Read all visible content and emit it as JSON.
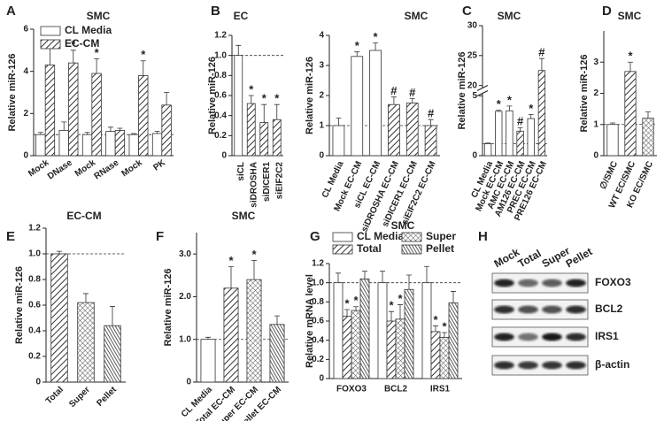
{
  "chart_data": [
    {
      "type": "bar",
      "panel": "A",
      "title": "SMC",
      "ylabel": "Relative miR-126",
      "categories": [
        "Mock",
        "DNase",
        "Mock",
        "RNase",
        "Mock",
        "PK"
      ],
      "series": [
        {
          "name": "CL Media",
          "color": "#ffffff",
          "pattern": "none",
          "values": [
            1.0,
            1.2,
            1.0,
            1.15,
            1.0,
            1.05
          ],
          "errors": [
            0.1,
            0.4,
            0.1,
            0.2,
            0.05,
            0.1
          ]
        },
        {
          "name": "EC-CM",
          "color": "#ffffff",
          "pattern": "hatch",
          "values": [
            4.3,
            4.4,
            3.9,
            1.2,
            3.8,
            2.4
          ],
          "errors": [
            1.1,
            0.6,
            0.7,
            0.1,
            0.7,
            0.6
          ],
          "labels": [
            "*",
            "*",
            "*",
            null,
            "*",
            null
          ]
        }
      ],
      "ylim": [
        0,
        6
      ],
      "yticks": [
        0,
        2,
        4,
        6
      ],
      "reference_line": 1,
      "legend": "top-left"
    },
    {
      "type": "bar",
      "panel": "B",
      "title": "EC",
      "ylabel": "Relative miR-126",
      "categories": [
        "siCL",
        "siDROSHA",
        "siDICER1",
        "siEIF2C2"
      ],
      "values": [
        1.0,
        0.52,
        0.33,
        0.36
      ],
      "errors": [
        0.1,
        0.08,
        0.18,
        0.15
      ],
      "labels": [
        null,
        "*",
        "*",
        "*"
      ],
      "color": "#ffffff",
      "patterns": [
        "none",
        "hatch",
        "hatch",
        "hatch"
      ],
      "ylim": [
        0,
        1.2
      ],
      "yticks": [
        0,
        0.2,
        0.4,
        0.6,
        0.8,
        {
          "value": 1,
          "label": "1.0"
        },
        1.2
      ],
      "reference_line": 1
    },
    {
      "type": "bar",
      "title": "SMC",
      "ylabel": "Relative miR-126",
      "categories": [
        "CL Media",
        "Mock EC-CM",
        "siCL EC-CM",
        "siDROSHA EC-CM",
        "siDICER1 EC-CM",
        "siEIF2C2 EC-CM"
      ],
      "values": [
        1.0,
        3.3,
        3.5,
        1.7,
        1.75,
        1.0
      ],
      "errors": [
        0.25,
        0.15,
        0.25,
        0.25,
        0.15,
        0.2
      ],
      "labels": [
        null,
        "*",
        "*",
        "#",
        "#",
        "#"
      ],
      "color": "#ffffff",
      "patterns": [
        "none",
        "none",
        "none",
        "hatch",
        "hatch",
        "hatch"
      ],
      "ylim": [
        0,
        4
      ],
      "yticks": [
        0,
        1,
        2,
        3,
        4
      ],
      "reference_line": 1
    },
    {
      "type": "bar",
      "panel": "C",
      "title": "SMC",
      "ylabel": "Relative miR-126",
      "categories": [
        "CL Media",
        "Mock EC-CM",
        "AMC EC-CM",
        "AM126 EC-CM",
        "PREC EC-CM",
        "PRE126 EC-CM"
      ],
      "values": [
        1.0,
        3.7,
        3.75,
        2.05,
        3.1,
        22.5
      ],
      "errors": [
        0.05,
        0.1,
        0.4,
        0.3,
        0.35,
        2
      ],
      "labels": [
        null,
        "*",
        "*",
        "#",
        "*",
        "#"
      ],
      "color": "#ffffff",
      "patterns": [
        "none",
        "none",
        "none",
        "hatch",
        "none",
        "hatch"
      ],
      "ylim": [
        0,
        30
      ],
      "ybreak": [
        5,
        20
      ],
      "yticks": [
        0,
        5,
        20,
        25,
        30
      ],
      "reference_line": 1
    },
    {
      "type": "bar",
      "panel": "D",
      "title": "SMC",
      "ylabel": "Relative miR-126",
      "categories": [
        "∅/SMC",
        "WT EC/SMC",
        "KO EC/SMC"
      ],
      "values": [
        1.0,
        2.7,
        1.2
      ],
      "errors": [
        0.05,
        0.3,
        0.2
      ],
      "labels": [
        null,
        "*",
        null
      ],
      "color": "#ffffff",
      "patterns": [
        "none",
        "hatch",
        "cross"
      ],
      "ylim": [
        0,
        4
      ],
      "yticks": [
        0,
        1,
        2,
        3
      ],
      "reference_line": 1
    },
    {
      "type": "bar",
      "panel": "E",
      "title": "EC-CM",
      "ylabel": "Relative miR-126",
      "categories": [
        "Total",
        "Super",
        "Pellet"
      ],
      "values": [
        1.0,
        0.62,
        0.44
      ],
      "errors": [
        0.02,
        0.07,
        0.15
      ],
      "color": "#ffffff",
      "patterns": [
        "hatch",
        "cross",
        "stripes"
      ],
      "ylim": [
        0,
        1.2
      ],
      "yticks": [
        0,
        0.2,
        0.4,
        0.6,
        0.8,
        {
          "value": 1,
          "label": "1.0"
        },
        1.2
      ],
      "reference_line": 1
    },
    {
      "type": "bar",
      "panel": "F",
      "title": "SMC",
      "ylabel": "Relative miR-126",
      "categories": [
        "CL Media",
        "Total EC-CM",
        "Super EC-CM",
        "Pellet EC-CM"
      ],
      "values": [
        1.0,
        2.2,
        2.4,
        1.35
      ],
      "errors": [
        0.05,
        0.5,
        0.45,
        0.2
      ],
      "labels": [
        null,
        "*",
        "*",
        null
      ],
      "color": "#ffffff",
      "patterns": [
        "none",
        "hatch",
        "cross",
        "stripes"
      ],
      "ylim": [
        0,
        3.5
      ],
      "yticks": [
        0,
        {
          "value": 1,
          "label": "1.0"
        },
        {
          "value": 2,
          "label": "2.0"
        },
        {
          "value": 3,
          "label": "3.0"
        }
      ],
      "reference_line": 1
    },
    {
      "type": "bar",
      "panel": "G",
      "title": "SMC",
      "ylabel": "Relative mRNA level",
      "categories": [
        "FOXO3",
        "BCL2",
        "IRS1"
      ],
      "series": [
        {
          "name": "CL Media",
          "color": "#ffffff",
          "pattern": "none",
          "values": [
            1.0,
            1.0,
            1.0
          ],
          "errors": [
            0.1,
            0.12,
            0.17
          ]
        },
        {
          "name": "Total",
          "color": "#ffffff",
          "pattern": "hatch",
          "values": [
            0.65,
            0.6,
            0.49
          ],
          "errors": [
            0.07,
            0.1,
            0.06
          ],
          "labels": [
            "*",
            "*",
            "*"
          ]
        },
        {
          "name": "Super",
          "color": "#ffffff",
          "pattern": "cross",
          "values": [
            0.71,
            0.62,
            0.43
          ],
          "errors": [
            0.04,
            0.15,
            0.05
          ],
          "labels": [
            "*",
            "*",
            "*"
          ]
        },
        {
          "name": "Pellet",
          "color": "#ffffff",
          "pattern": "stripes",
          "values": [
            1.04,
            0.93,
            0.79
          ],
          "errors": [
            0.08,
            0.15,
            0.12
          ]
        }
      ],
      "ylim": [
        0,
        1.2
      ],
      "yticks": [
        0,
        0.2,
        0.4,
        0.6,
        0.8,
        {
          "value": 1,
          "label": "1.0"
        },
        1.2
      ],
      "reference_line": 1,
      "legend": "top"
    },
    {
      "type": "blot",
      "panel": "H",
      "lanes": [
        "Mock",
        "Total",
        "Super",
        "Pellet"
      ],
      "rows": [
        "FOXO3",
        "BCL2",
        "IRS1",
        "β-actin"
      ]
    }
  ]
}
